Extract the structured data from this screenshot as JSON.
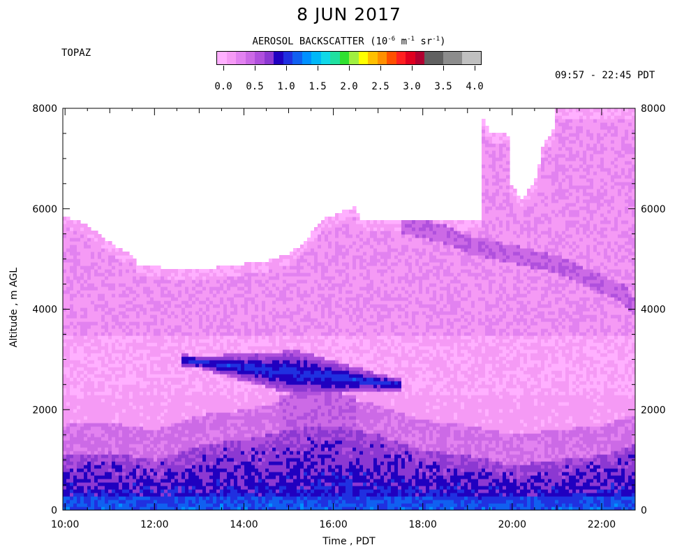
{
  "chart_data": {
    "type": "heatmap",
    "title": "8 JUN 2017",
    "station": "TOPAZ",
    "colorbar": {
      "label_main": "AEROSOL BACKSCATTER (10",
      "label_exp1": "-6",
      "label_m": " m",
      "label_exp2": "-1",
      "label_sr": " sr",
      "label_exp3": "-1",
      "label_close": ")",
      "tick_labels": [
        "0.0",
        "0.5",
        "1.0",
        "1.5",
        "2.0",
        "2.5",
        "3.0",
        "3.5",
        "4.0"
      ],
      "range": [
        0.0,
        4.0
      ],
      "colors": [
        "#ffb0ff",
        "#f59af5",
        "#e282f0",
        "#cc6ae6",
        "#b050dd",
        "#8c38d2",
        "#2000c0",
        "#2030e0",
        "#1060f0",
        "#0090ff",
        "#00b8f8",
        "#10d8e8",
        "#20e0a0",
        "#30e030",
        "#a0f040",
        "#ffff00",
        "#ffc000",
        "#ff9000",
        "#ff5000",
        "#ff2020",
        "#e00020",
        "#b00030",
        "#606060",
        "#606060",
        "#8c8c8c",
        "#8c8c8c",
        "#c0c0c0",
        "#c0c0c0"
      ]
    },
    "time_range": "09:57 - 22:45 PDT",
    "xlabel": "Time , PDT",
    "ylabel": "Altitude , m AGL",
    "x_ticks": [
      "10:00",
      "12:00",
      "14:00",
      "16:00",
      "18:00",
      "20:00",
      "22:00"
    ],
    "y_ticks_left": [
      "0",
      "2000",
      "4000",
      "6000",
      "8000"
    ],
    "y_ticks_right": [
      "0",
      "2000",
      "4000",
      "6000",
      "8000"
    ],
    "xlim": [
      9.95,
      22.75
    ],
    "ylim": [
      0,
      8000
    ],
    "top_of_data_m": [
      [
        9.95,
        5850
      ],
      [
        10.3,
        5750
      ],
      [
        10.6,
        5600
      ],
      [
        10.9,
        5400
      ],
      [
        11.2,
        5200
      ],
      [
        11.5,
        5100
      ],
      [
        11.6,
        4900
      ],
      [
        12.0,
        4850
      ],
      [
        12.5,
        4800
      ],
      [
        13.0,
        4800
      ],
      [
        13.5,
        4850
      ],
      [
        14.0,
        4900
      ],
      [
        14.5,
        4950
      ],
      [
        15.0,
        5100
      ],
      [
        15.3,
        5300
      ],
      [
        15.5,
        5500
      ],
      [
        15.8,
        5800
      ],
      [
        16.2,
        5950
      ],
      [
        16.5,
        6050
      ],
      [
        16.6,
        5800
      ],
      [
        17.0,
        5800
      ],
      [
        18.0,
        5800
      ],
      [
        19.0,
        5800
      ],
      [
        19.3,
        5800
      ],
      [
        19.35,
        7800
      ],
      [
        19.5,
        7500
      ],
      [
        19.9,
        7500
      ],
      [
        19.95,
        6500
      ],
      [
        20.2,
        6200
      ],
      [
        20.5,
        6500
      ],
      [
        20.7,
        7300
      ],
      [
        20.9,
        7500
      ],
      [
        21.0,
        8000
      ],
      [
        22.75,
        8000
      ]
    ],
    "blue_layer": {
      "description_value_range": [
        0.6,
        1.4
      ],
      "altitude_m": [
        2300,
        3200
      ],
      "time_range": [
        12.6,
        17.5
      ]
    },
    "boundary_layer_top_m": [
      [
        9.95,
        1100
      ],
      [
        11.0,
        1150
      ],
      [
        12.0,
        1000
      ],
      [
        13.0,
        1300
      ],
      [
        14.0,
        1400
      ],
      [
        15.0,
        1600
      ],
      [
        16.0,
        1700
      ],
      [
        17.0,
        1500
      ],
      [
        18.0,
        1200
      ],
      [
        19.0,
        1100
      ],
      [
        20.0,
        900
      ],
      [
        21.0,
        1000
      ],
      [
        22.0,
        1100
      ],
      [
        22.75,
        1300
      ]
    ],
    "upper_dark_layer_m": [
      [
        17.5,
        5700
      ],
      [
        18.5,
        5500
      ],
      [
        19.0,
        5300
      ],
      [
        20.0,
        5100
      ],
      [
        21.0,
        4900
      ],
      [
        22.0,
        4500
      ],
      [
        22.5,
        4300
      ],
      [
        22.75,
        4050
      ]
    ]
  }
}
